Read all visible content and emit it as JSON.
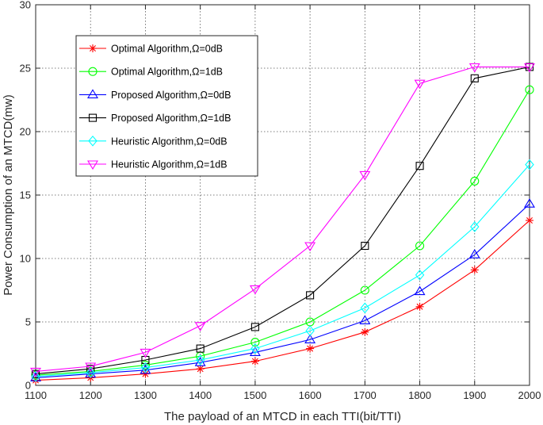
{
  "chart_data": {
    "type": "line",
    "title": "",
    "xlabel": "The payload of an MTCD in each TTI(bit/TTI)",
    "ylabel": "Power Consumption of an MTCD(mw)",
    "x": [
      1100,
      1200,
      1300,
      1400,
      1500,
      1600,
      1700,
      1800,
      1900,
      2000
    ],
    "xlim": [
      1100,
      2000
    ],
    "ylim": [
      0,
      30
    ],
    "xticks": [
      "1100",
      "1200",
      "1300",
      "1400",
      "1500",
      "1600",
      "1700",
      "1800",
      "1900",
      "2000"
    ],
    "yticks": [
      "0",
      "5",
      "10",
      "15",
      "20",
      "25",
      "30"
    ],
    "grid": true,
    "legend_position": "top-left",
    "series": [
      {
        "name": "Optimal Algorithm,Ω=0dB",
        "color": "#ff0000",
        "marker": "star",
        "values": [
          0.4,
          0.6,
          0.9,
          1.3,
          1.9,
          2.9,
          4.2,
          6.2,
          9.1,
          13.0
        ]
      },
      {
        "name": "Optimal Algorithm,Ω=1dB",
        "color": "#00ff00",
        "marker": "circle",
        "values": [
          0.8,
          1.1,
          1.6,
          2.3,
          3.4,
          5.0,
          7.5,
          11.0,
          16.1,
          23.3
        ]
      },
      {
        "name": "Proposed Algorithm,Ω=0dB",
        "color": "#0000ff",
        "marker": "triangle-up",
        "values": [
          0.6,
          0.9,
          1.2,
          1.8,
          2.6,
          3.6,
          5.1,
          7.4,
          10.3,
          14.3
        ]
      },
      {
        "name": "Proposed Algorithm,Ω=1dB",
        "color": "#000000",
        "marker": "square",
        "values": [
          0.9,
          1.3,
          2.0,
          2.9,
          4.6,
          7.1,
          11.0,
          17.3,
          24.2,
          25.1
        ]
      },
      {
        "name": "Heuristic Algorithm,Ω=0dB",
        "color": "#00ffff",
        "marker": "diamond",
        "values": [
          0.7,
          1.0,
          1.4,
          2.0,
          2.9,
          4.3,
          6.1,
          8.7,
          12.5,
          17.4
        ]
      },
      {
        "name": "Heuristic Algorithm,Ω=1dB",
        "color": "#ff00ff",
        "marker": "triangle-down",
        "values": [
          1.1,
          1.5,
          2.6,
          4.7,
          7.6,
          11.0,
          16.6,
          23.8,
          25.1,
          25.1
        ]
      }
    ]
  }
}
